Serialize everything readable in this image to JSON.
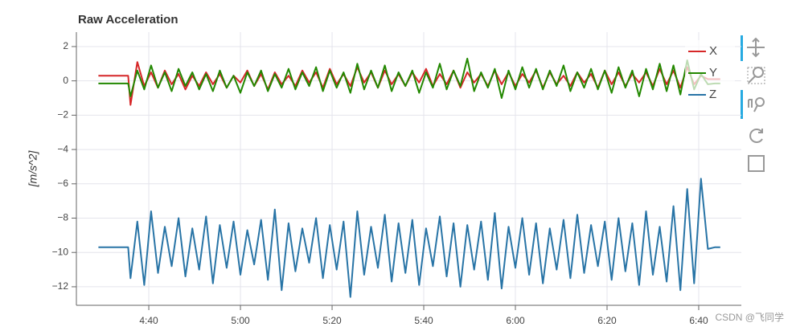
{
  "chart_data": {
    "type": "line",
    "title": "Raw Acceleration",
    "ylabel": "[m/s^2]",
    "watermark": "CSDN @飞同学",
    "x": [
      269,
      275.5,
      276,
      277.5,
      279,
      280.5,
      282,
      283.5,
      285,
      286.5,
      288,
      289.5,
      291,
      292.5,
      294,
      295.5,
      297,
      298.5,
      300,
      301.5,
      303,
      304.5,
      306,
      307.5,
      309,
      310.5,
      312,
      313.5,
      315,
      316.5,
      318,
      319.5,
      321,
      322.5,
      324,
      325.5,
      327,
      328.5,
      330,
      331.5,
      333,
      334.5,
      336,
      337.5,
      339,
      340.5,
      342,
      343.5,
      345,
      346.5,
      348,
      349.5,
      351,
      352.5,
      354,
      355.5,
      357,
      358.5,
      360,
      361.5,
      363,
      364.5,
      366,
      367.5,
      369,
      370.5,
      372,
      373.5,
      375,
      376.5,
      378,
      379.5,
      381,
      382.5,
      384,
      385.5,
      387,
      388.5,
      390,
      391.5,
      393,
      394.5,
      396,
      397.5,
      399,
      400.5,
      402,
      403.5,
      404.7
    ],
    "series": [
      {
        "name": "X",
        "color": "#d62728",
        "values": [
          0.3,
          0.3,
          -1.4,
          1.1,
          -0.3,
          0.5,
          -0.4,
          0.6,
          -0.2,
          0.4,
          -0.5,
          0.3,
          -0.3,
          0.5,
          -0.2,
          0.4,
          -0.4,
          0.3,
          -0.1,
          0.6,
          -0.3,
          0.4,
          -0.5,
          0.5,
          -0.2,
          0.3,
          -0.3,
          0.6,
          -0.1,
          0.5,
          -0.4,
          0.7,
          -0.2,
          0.4,
          -0.3,
          0.8,
          -0.1,
          0.5,
          -0.4,
          0.6,
          -0.2,
          0.4,
          -0.3,
          0.5,
          -0.1,
          0.7,
          -0.3,
          0.4,
          -0.2,
          0.6,
          -0.4,
          0.5,
          -0.1,
          0.4,
          -0.3,
          0.6,
          -0.2,
          0.5,
          -0.3,
          0.4,
          -0.1,
          0.6,
          -0.4,
          0.5,
          -0.2,
          0.3,
          -0.3,
          0.5,
          -0.1,
          0.4,
          -0.4,
          0.6,
          -0.2,
          0.5,
          -0.3,
          0.4,
          -0.1,
          0.5,
          -0.3,
          0.7,
          -0.2,
          0.6,
          -0.4,
          0.8,
          -0.2,
          0.3,
          0.1,
          0.1,
          0.1
        ]
      },
      {
        "name": "Y",
        "color": "#228800",
        "values": [
          -0.15,
          -0.15,
          -0.9,
          0.6,
          -0.5,
          0.9,
          -0.4,
          0.5,
          -0.6,
          0.7,
          -0.3,
          0.5,
          -0.5,
          0.4,
          -0.6,
          0.6,
          -0.4,
          0.3,
          -0.7,
          0.5,
          -0.3,
          0.6,
          -0.6,
          0.4,
          -0.4,
          0.7,
          -0.5,
          0.5,
          -0.3,
          0.8,
          -0.6,
          0.6,
          -0.4,
          0.5,
          -0.7,
          1.0,
          -0.5,
          0.6,
          -0.4,
          0.9,
          -0.6,
          0.5,
          -0.3,
          0.6,
          -0.7,
          0.5,
          -0.4,
          1.0,
          -0.5,
          0.6,
          -0.3,
          1.3,
          -0.6,
          0.5,
          -0.4,
          0.7,
          -1.0,
          0.6,
          -0.5,
          0.8,
          -0.4,
          0.7,
          -0.5,
          0.6,
          -0.3,
          0.9,
          -0.6,
          0.5,
          -0.4,
          0.7,
          -0.5,
          0.6,
          -0.7,
          0.8,
          -0.4,
          0.6,
          -0.9,
          0.7,
          -0.5,
          1.0,
          -0.6,
          0.9,
          -0.8,
          1.2,
          -0.5,
          0.4,
          -0.2,
          -0.15,
          -0.15
        ]
      },
      {
        "name": "Z",
        "color": "#2874a6",
        "values": [
          -9.7,
          -9.7,
          -11.5,
          -8.2,
          -11.9,
          -7.6,
          -11.2,
          -8.5,
          -10.8,
          -8.0,
          -11.4,
          -8.6,
          -11.0,
          -7.9,
          -11.8,
          -8.4,
          -10.9,
          -8.2,
          -11.3,
          -8.7,
          -10.7,
          -8.1,
          -11.6,
          -7.5,
          -12.2,
          -8.3,
          -11.1,
          -8.6,
          -10.6,
          -8.0,
          -11.5,
          -8.4,
          -11.0,
          -8.2,
          -12.6,
          -7.6,
          -11.3,
          -8.5,
          -10.9,
          -7.8,
          -11.7,
          -8.3,
          -11.2,
          -8.1,
          -11.9,
          -8.6,
          -10.8,
          -7.9,
          -11.4,
          -8.3,
          -12.0,
          -8.4,
          -11.0,
          -8.2,
          -11.6,
          -7.7,
          -12.1,
          -8.5,
          -10.9,
          -8.0,
          -11.3,
          -8.3,
          -11.8,
          -8.6,
          -11.0,
          -8.1,
          -11.5,
          -7.8,
          -11.2,
          -8.4,
          -10.8,
          -8.2,
          -11.6,
          -8.0,
          -11.1,
          -8.3,
          -11.9,
          -7.6,
          -11.3,
          -8.5,
          -11.7,
          -7.3,
          -12.2,
          -6.3,
          -11.8,
          -5.7,
          -9.8,
          -9.7,
          -9.7
        ]
      }
    ],
    "xlim": [
      264.2,
      409.3
    ],
    "xticks": [
      {
        "value": 280,
        "label": "4:40"
      },
      {
        "value": 300,
        "label": "5:00"
      },
      {
        "value": 320,
        "label": "5:20"
      },
      {
        "value": 340,
        "label": "5:40"
      },
      {
        "value": 360,
        "label": "6:00"
      },
      {
        "value": 380,
        "label": "6:20"
      },
      {
        "value": 400,
        "label": "6:40"
      }
    ],
    "ylim": [
      -13.08,
      2.84
    ],
    "yticks": [
      2,
      0,
      {
        "value": -2,
        "label": "−2"
      },
      {
        "value": -4,
        "label": "−4"
      },
      {
        "value": -6,
        "label": "−6"
      },
      {
        "value": -8,
        "label": "−8"
      },
      {
        "value": -10,
        "label": "−10"
      },
      {
        "value": -12,
        "label": "−12"
      }
    ],
    "grid": true,
    "legend": "top-right"
  }
}
